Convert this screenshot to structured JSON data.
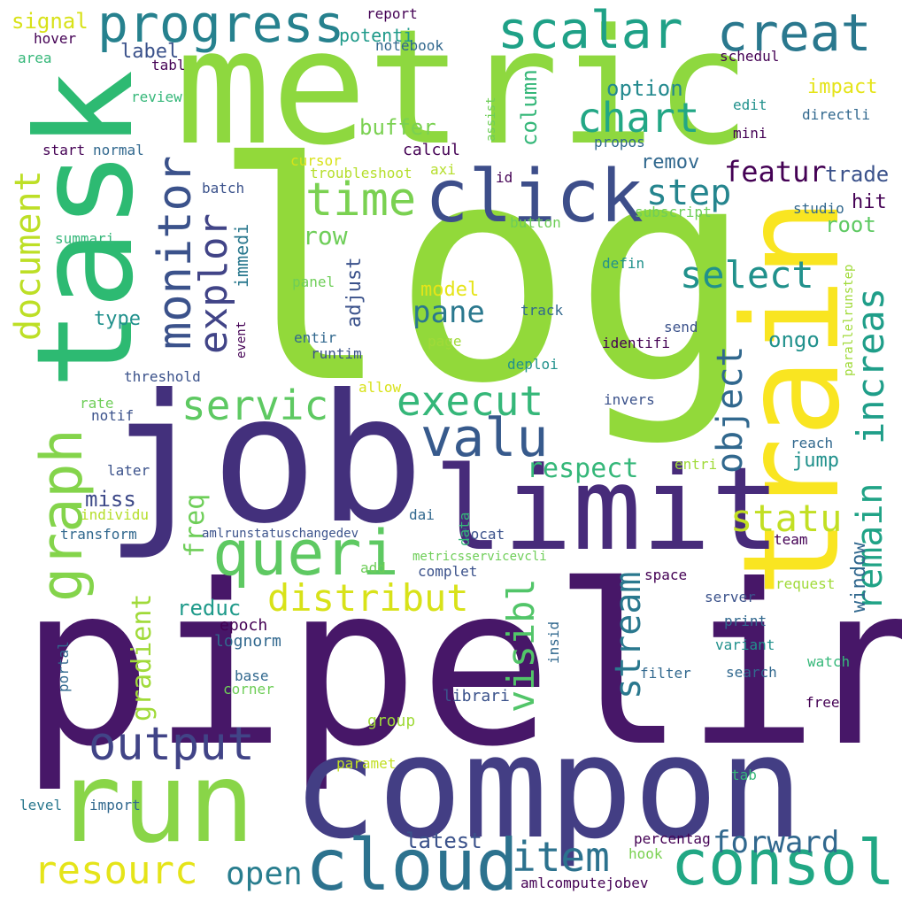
{
  "words": {
    "log": {
      "text": "log",
      "color": "#92d93a"
    },
    "pipelin": {
      "text": "pipelin",
      "color": "#471768"
    },
    "job": {
      "text": "job",
      "color": "#43307c"
    },
    "metric": {
      "text": "metric",
      "color": "#8ed83f"
    },
    "compon": {
      "text": "compon",
      "color": "#433e84"
    },
    "task": {
      "text": "task",
      "color": "#2dba72"
    },
    "train": {
      "text": "train",
      "color": "#f9e521"
    },
    "run": {
      "text": "run",
      "color": "#89d548"
    },
    "limit": {
      "text": "limit",
      "color": "#472b7a"
    },
    "click": {
      "text": "click",
      "color": "#3d4e8a"
    },
    "queri": {
      "text": "queri",
      "color": "#5ec962"
    },
    "cloud": {
      "text": "cloud",
      "color": "#2c728e"
    },
    "consol": {
      "text": "consol",
      "color": "#21a784"
    },
    "valu": {
      "text": "valu",
      "color": "#375a8c"
    },
    "progress": {
      "text": "progress",
      "color": "#26818e"
    },
    "scalar": {
      "text": "scalar",
      "color": "#1fa187"
    },
    "creat": {
      "text": "creat",
      "color": "#2a788e"
    },
    "time": {
      "text": "time",
      "color": "#7ad151"
    },
    "chart": {
      "text": "chart",
      "color": "#22a785"
    },
    "graph": {
      "text": "graph",
      "color": "#84d44b"
    },
    "monitor": {
      "text": "monitor",
      "color": "#3b528b"
    },
    "explor": {
      "text": "explor",
      "color": "#414487"
    },
    "servic": {
      "text": "servic",
      "color": "#5ec962"
    },
    "execut": {
      "text": "execut",
      "color": "#35b779"
    },
    "output": {
      "text": "output",
      "color": "#414487"
    },
    "distribut": {
      "text": "distribut",
      "color": "#d8e219"
    },
    "statu": {
      "text": "statu",
      "color": "#c2df23"
    },
    "step": {
      "text": "step",
      "color": "#25858e"
    },
    "select": {
      "text": "select",
      "color": "#21918c"
    },
    "increas": {
      "text": "increas",
      "color": "#1f9e89"
    },
    "object": {
      "text": "object",
      "color": "#31688e"
    },
    "remain": {
      "text": "remain",
      "color": "#20a386"
    },
    "stream": {
      "text": "stream",
      "color": "#2a788e"
    },
    "visibl": {
      "text": "visibl",
      "color": "#52c569"
    },
    "item": {
      "text": "item",
      "color": "#2c728e"
    },
    "resourc": {
      "text": "resourc",
      "color": "#e5e419"
    },
    "forward": {
      "text": "forward",
      "color": "#31688e"
    },
    "open": {
      "text": "open",
      "color": "#287d8e"
    },
    "document": {
      "text": "document",
      "color": "#bddf26"
    },
    "featur": {
      "text": "featur",
      "color": "#440154"
    },
    "respect": {
      "text": "respect",
      "color": "#35b779"
    },
    "pane": {
      "text": "pane",
      "color": "#2a788e"
    },
    "freq": {
      "text": "freq",
      "color": "#6ece58"
    },
    "gradient": {
      "text": "gradient",
      "color": "#a0da39"
    },
    "reduc": {
      "text": "reduc",
      "color": "#1f9a8a"
    },
    "miss": {
      "text": "miss",
      "color": "#3e4a89"
    },
    "latest": {
      "text": "latest",
      "color": "#3b528b"
    },
    "row": {
      "text": "row",
      "color": "#6ece58"
    },
    "buffer": {
      "text": "buffer",
      "color": "#7ad151"
    },
    "column": {
      "text": "column",
      "color": "#35b779"
    },
    "option": {
      "text": "option",
      "color": "#23898e"
    },
    "remov": {
      "text": "remov",
      "color": "#31688e"
    },
    "trade": {
      "text": "trade",
      "color": "#3b528b"
    },
    "hit": {
      "text": "hit",
      "color": "#440154"
    },
    "root": {
      "text": "root",
      "color": "#5ec962"
    },
    "ongo": {
      "text": "ongo",
      "color": "#21918c"
    },
    "jump": {
      "text": "jump",
      "color": "#21918c"
    },
    "window": {
      "text": "window",
      "color": "#31688e"
    },
    "impact": {
      "text": "impact",
      "color": "#e5e419"
    },
    "model": {
      "text": "model",
      "color": "#e5e419"
    },
    "label": {
      "text": "label",
      "color": "#3b528b"
    },
    "potenti": {
      "text": "potenti",
      "color": "#1f9a8a"
    },
    "signal": {
      "text": "signal",
      "color": "#d8e219"
    },
    "type": {
      "text": "type",
      "color": "#21918c"
    },
    "adjust": {
      "text": "adjust",
      "color": "#3b528b"
    },
    "immedi": {
      "text": "immedi",
      "color": "#2a788e"
    },
    "epoch": {
      "text": "epoch",
      "color": "#440154"
    },
    "lognorm": {
      "text": "lognorm",
      "color": "#31688e"
    },
    "base": {
      "text": "base",
      "color": "#31688e"
    },
    "corner": {
      "text": "corner",
      "color": "#6ece58"
    },
    "librari": {
      "text": "librari",
      "color": "#3b528b"
    },
    "group": {
      "text": "group",
      "color": "#a0da39"
    },
    "paramet": {
      "text": "paramet",
      "color": "#c2df23"
    },
    "level": {
      "text": "level",
      "color": "#2a788e"
    },
    "import": {
      "text": "import",
      "color": "#31688e"
    },
    "portal": {
      "text": "portal",
      "color": "#31688e"
    },
    "insid": {
      "text": "insid",
      "color": "#31688e"
    },
    "percentag": {
      "text": "percentag",
      "color": "#440154"
    },
    "hook": {
      "text": "hook",
      "color": "#7ad151"
    },
    "amlcomputejobev": {
      "text": "amlcomputejobev",
      "color": "#440154"
    },
    "tab": {
      "text": "tab",
      "color": "#35b779"
    },
    "free": {
      "text": "free",
      "color": "#440154"
    },
    "watch": {
      "text": "watch",
      "color": "#35b779"
    },
    "search": {
      "text": "search",
      "color": "#31688e"
    },
    "filter": {
      "text": "filter",
      "color": "#31688e"
    },
    "variant": {
      "text": "variant",
      "color": "#21918c"
    },
    "print": {
      "text": "print",
      "color": "#31688e"
    },
    "server": {
      "text": "server",
      "color": "#3b528b"
    },
    "space": {
      "text": "space",
      "color": "#440154"
    },
    "request": {
      "text": "request",
      "color": "#a0da39"
    },
    "team": {
      "text": "team",
      "color": "#440154"
    },
    "entri": {
      "text": "entri",
      "color": "#a0da39"
    },
    "reach": {
      "text": "reach",
      "color": "#31688e"
    },
    "invers": {
      "text": "invers",
      "color": "#3b528b"
    },
    "parallelrunstep": {
      "text": "parallelrunstep",
      "color": "#a0da39"
    },
    "identifi": {
      "text": "identifi",
      "color": "#440154"
    },
    "send": {
      "text": "send",
      "color": "#3b528b"
    },
    "track": {
      "text": "track",
      "color": "#31688e"
    },
    "defin": {
      "text": "defin",
      "color": "#21918c"
    },
    "deploi": {
      "text": "deploi",
      "color": "#21918c"
    },
    "page": {
      "text": "page",
      "color": "#a0da39"
    },
    "locat": {
      "text": "locat",
      "color": "#3b528b"
    },
    "dai": {
      "text": "dai",
      "color": "#31688e"
    },
    "data": {
      "text": "data",
      "color": "#35b779"
    },
    "complet": {
      "text": "complet",
      "color": "#3b528b"
    },
    "metricsservicevcli": {
      "text": "metricsservicevcli",
      "color": "#6ece58"
    },
    "add": {
      "text": "add",
      "color": "#6ece58"
    },
    "amlrunstatuschangedev": {
      "text": "amlrunstatuschangedev",
      "color": "#3b528b"
    },
    "individu": {
      "text": "individu",
      "color": "#b5de2b"
    },
    "transform": {
      "text": "transform",
      "color": "#31688e"
    },
    "later": {
      "text": "later",
      "color": "#3b528b"
    },
    "notif": {
      "text": "notif",
      "color": "#3b528b"
    },
    "rate": {
      "text": "rate",
      "color": "#6ece58"
    },
    "threshold": {
      "text": "threshold",
      "color": "#3b528b"
    },
    "allow": {
      "text": "allow",
      "color": "#d8e219"
    },
    "runtim": {
      "text": "runtim",
      "color": "#3b528b"
    },
    "entir": {
      "text": "entir",
      "color": "#31688e"
    },
    "event": {
      "text": "event",
      "color": "#440154"
    },
    "panel": {
      "text": "panel",
      "color": "#6ece58"
    },
    "summari": {
      "text": "summari",
      "color": "#35b779"
    },
    "batch": {
      "text": "batch",
      "color": "#3b528b"
    },
    "cursor": {
      "text": "cursor",
      "color": "#d8e219"
    },
    "troubleshoot": {
      "text": "troubleshoot",
      "color": "#b5de2b"
    },
    "axi": {
      "text": "axi",
      "color": "#b5de2b"
    },
    "id": {
      "text": "id",
      "color": "#440154"
    },
    "calcul": {
      "text": "calcul",
      "color": "#440154"
    },
    "start": {
      "text": "start",
      "color": "#440154"
    },
    "normal": {
      "text": "normal",
      "color": "#31688e"
    },
    "review": {
      "text": "review",
      "color": "#35b779"
    },
    "tabl": {
      "text": "tabl",
      "color": "#440154"
    },
    "area": {
      "text": "area",
      "color": "#35b779"
    },
    "hover": {
      "text": "hover",
      "color": "#440154"
    },
    "report": {
      "text": "report",
      "color": "#440154"
    },
    "notebook": {
      "text": "notebook",
      "color": "#31688e"
    },
    "schedul": {
      "text": "schedul",
      "color": "#440154"
    },
    "edit": {
      "text": "edit",
      "color": "#21918c"
    },
    "directli": {
      "text": "directli",
      "color": "#31688e"
    },
    "mini": {
      "text": "mini",
      "color": "#440154"
    },
    "propos": {
      "text": "propos",
      "color": "#31688e"
    },
    "assist": {
      "text": "assist",
      "color": "#6ece58"
    },
    "subscript": {
      "text": "subscript",
      "color": "#6ece58"
    },
    "button": {
      "text": "button",
      "color": "#6ece58"
    },
    "studio": {
      "text": "studio",
      "color": "#31688e"
    }
  }
}
